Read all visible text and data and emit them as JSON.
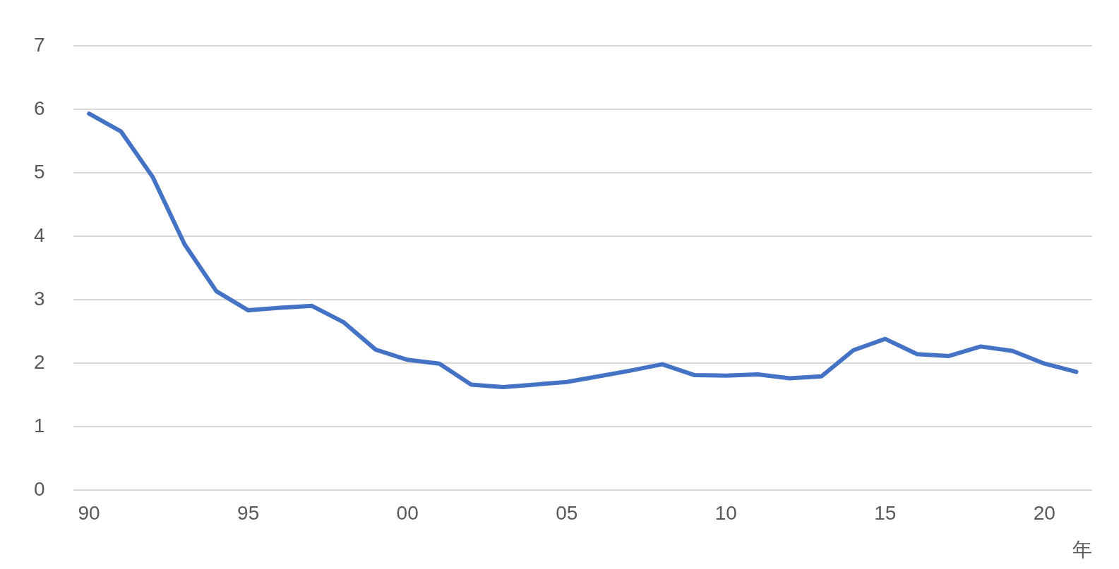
{
  "chart_data": {
    "type": "line",
    "xlabel": "年",
    "categories": [
      "90",
      null,
      null,
      null,
      null,
      "95",
      null,
      null,
      null,
      null,
      "00",
      null,
      null,
      null,
      null,
      "05",
      null,
      null,
      null,
      null,
      "10",
      null,
      null,
      null,
      null,
      "15",
      null,
      null,
      null,
      null,
      "20",
      null
    ],
    "series": [
      {
        "color": "#4472c4",
        "values": [
          5.93,
          5.65,
          4.93,
          3.87,
          3.13,
          2.83,
          2.87,
          2.9,
          2.64,
          2.21,
          2.05,
          1.99,
          1.66,
          1.62,
          1.66,
          1.7,
          1.79,
          1.88,
          1.98,
          1.81,
          1.8,
          1.82,
          1.76,
          1.79,
          2.2,
          2.38,
          2.14,
          2.11,
          2.26,
          2.19,
          1.99,
          1.86
        ]
      }
    ],
    "ylim": [
      0,
      7
    ],
    "yticks": [
      0,
      1,
      2,
      3,
      4,
      5,
      6,
      7
    ],
    "grid": "y",
    "legend": false,
    "marker": "none",
    "line_style": "solid"
  }
}
